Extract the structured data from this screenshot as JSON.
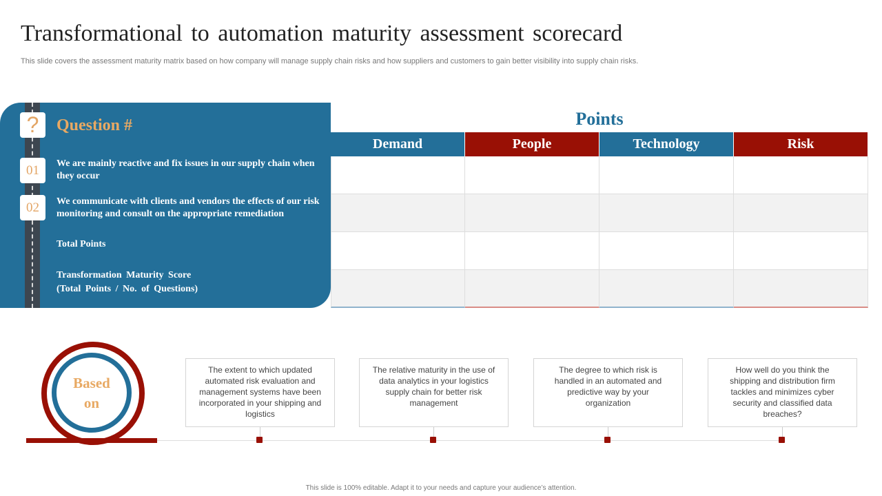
{
  "slide": {
    "title": "Transformational to automation maturity assessment scorecard",
    "subtitle": "This slide covers the assessment maturity matrix based on how company will manage supply chain risks and how suppliers and customers to gain better visibility into supply chain risks.",
    "footer": "This slide is 100% editable. Adapt it to your needs and capture your audience’s attention."
  },
  "panel": {
    "heading": "Question #",
    "badges": [
      "?",
      "01",
      "02"
    ],
    "rows": [
      "We are mainly reactive and fix issues in our supply chain when they occur",
      "We communicate with clients and vendors the effects of our risk monitoring and consult on the appropriate remediation",
      "Total Points",
      "Transformation Maturity Score",
      "(Total Points / No. of Questions)"
    ]
  },
  "points": {
    "title": "Points",
    "columns": [
      "Demand",
      "People",
      "Technology",
      "Risk"
    ]
  },
  "based_on": {
    "label_line1": "Based",
    "label_line2": "on",
    "cards": [
      "The extent to which updated automated risk evaluation and management systems have been incorporated in your shipping and logistics",
      "The relative maturity in the use of data analytics in your logistics supply chain for better risk management",
      "The degree to which risk is handled in an automated and predictive way by your organization",
      "How well do you think the shipping and distribution firm tackles and minimizes cyber security and classified data breaches?"
    ]
  },
  "colors": {
    "blue": "#236f99",
    "red": "#991005",
    "accent": "#e8a963"
  }
}
